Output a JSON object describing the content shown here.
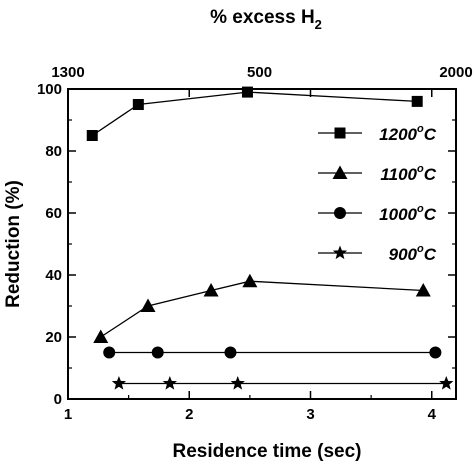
{
  "chart_data": {
    "type": "line",
    "xlabel": "Residence time (sec)",
    "ylabel": "Reduction (%)",
    "top_axis_label": {
      "prefix": "% excess H",
      "sub": "2"
    },
    "xlim": [
      1,
      4.2
    ],
    "ylim": [
      0,
      100
    ],
    "x_ticks": [
      {
        "value": 1,
        "label": "1"
      },
      {
        "value": 2,
        "label": "2"
      },
      {
        "value": 3,
        "label": "3"
      },
      {
        "value": 4,
        "label": "4"
      }
    ],
    "y_ticks": [
      {
        "value": 0,
        "label": "0"
      },
      {
        "value": 20,
        "label": "20"
      },
      {
        "value": 40,
        "label": "40"
      },
      {
        "value": 60,
        "label": "60"
      },
      {
        "value": 80,
        "label": "80"
      },
      {
        "value": 100,
        "label": "100"
      }
    ],
    "top_ticks": [
      {
        "at_x": 1.0,
        "label": "1300"
      },
      {
        "at_x": 2.58,
        "label": "500"
      },
      {
        "at_x": 4.2,
        "label": "2000"
      }
    ],
    "grid": false,
    "legend_position": "top-right",
    "series": [
      {
        "name": "1200",
        "unit": "C",
        "marker": "square",
        "x": [
          1.2,
          1.58,
          2.48,
          3.88
        ],
        "y": [
          85,
          95,
          99,
          96
        ]
      },
      {
        "name": "1100",
        "unit": "C",
        "marker": "triangle",
        "x": [
          1.27,
          1.66,
          2.18,
          2.5,
          3.93
        ],
        "y": [
          20,
          30,
          35,
          38,
          35
        ]
      },
      {
        "name": "1000",
        "unit": "C",
        "marker": "circle",
        "x": [
          1.34,
          1.74,
          2.34,
          4.03
        ],
        "y": [
          15,
          15,
          15,
          15
        ]
      },
      {
        "name": "900",
        "unit": "C",
        "marker": "star",
        "x": [
          1.42,
          1.84,
          2.4,
          4.12
        ],
        "y": [
          5,
          5,
          5,
          5
        ]
      }
    ]
  }
}
